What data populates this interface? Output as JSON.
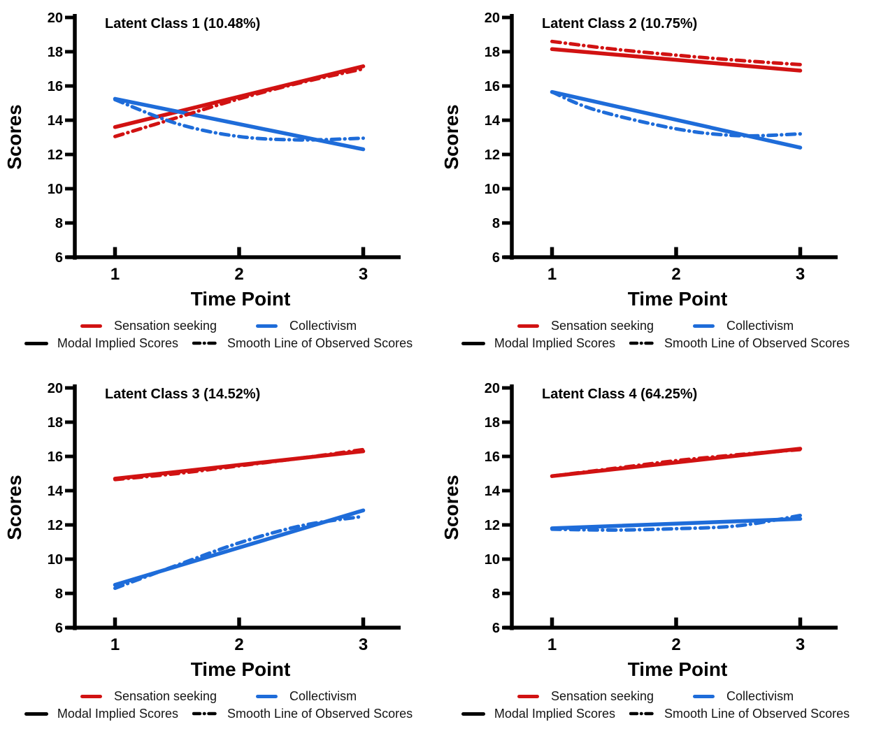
{
  "figure": {
    "background": "#ffffff"
  },
  "colors": {
    "sensation_seeking": "#d11212",
    "collectivism": "#1e6cd9",
    "axis": "#000000",
    "black_key": "#000000"
  },
  "legend": {
    "series": [
      {
        "label": "Sensation seeking",
        "color": "sensation_seeking"
      },
      {
        "label": "Collectivism",
        "color": "collectivism"
      }
    ],
    "styles": [
      {
        "label": "Modal Implied Scores",
        "style": "solid"
      },
      {
        "label": "Smooth Line of Observed Scores",
        "style": "dashdot"
      }
    ]
  },
  "chart_data": {
    "type": "line",
    "xlabel": "Time Point",
    "ylabel": "Scores",
    "xticks": [
      1,
      2,
      3
    ],
    "yticks": [
      6,
      8,
      10,
      12,
      14,
      16,
      18,
      20
    ],
    "xlim": [
      1,
      3
    ],
    "ylim": [
      6,
      20
    ],
    "grid": false,
    "legend_position": "bottom",
    "series_meta": [
      {
        "name": "Sensation seeking — Modal Implied Scores",
        "color": "sensation_seeking",
        "style": "solid"
      },
      {
        "name": "Collectivism — Modal Implied Scores",
        "color": "collectivism",
        "style": "solid"
      },
      {
        "name": "Sensation seeking — Smooth Line of Observed Scores",
        "color": "sensation_seeking",
        "style": "dashdot"
      },
      {
        "name": "Collectivism — Smooth Line of Observed Scores",
        "color": "collectivism",
        "style": "dashdot"
      }
    ],
    "panels": [
      {
        "title": "Latent Class 1 (10.48%)",
        "series": [
          {
            "points": [
              [
                1,
                13.6
              ],
              [
                3,
                17.15
              ]
            ]
          },
          {
            "points": [
              [
                1,
                15.25
              ],
              [
                3,
                12.3
              ]
            ]
          },
          {
            "points": [
              [
                1,
                13.05
              ],
              [
                1.5,
                14.15
              ],
              [
                2,
                15.25
              ],
              [
                2.5,
                16.2
              ],
              [
                3,
                17.0
              ]
            ]
          },
          {
            "points": [
              [
                1,
                15.2
              ],
              [
                1.5,
                13.8
              ],
              [
                2,
                13.05
              ],
              [
                2.5,
                12.85
              ],
              [
                3,
                12.95
              ]
            ]
          }
        ]
      },
      {
        "title": "Latent Class 2 (10.75%)",
        "series": [
          {
            "points": [
              [
                1,
                18.15
              ],
              [
                3,
                16.9
              ]
            ]
          },
          {
            "points": [
              [
                1,
                15.65
              ],
              [
                3,
                12.4
              ]
            ]
          },
          {
            "points": [
              [
                1,
                18.6
              ],
              [
                1.5,
                18.15
              ],
              [
                2,
                17.8
              ],
              [
                2.5,
                17.5
              ],
              [
                3,
                17.25
              ]
            ]
          },
          {
            "points": [
              [
                1,
                15.65
              ],
              [
                1.35,
                14.6
              ],
              [
                2,
                13.5
              ],
              [
                2.5,
                13.1
              ],
              [
                3,
                13.2
              ]
            ]
          }
        ]
      },
      {
        "title": "Latent Class 3 (14.52%)",
        "series": [
          {
            "points": [
              [
                1,
                14.7
              ],
              [
                3,
                16.3
              ]
            ]
          },
          {
            "points": [
              [
                1,
                8.5
              ],
              [
                3,
                12.85
              ]
            ]
          },
          {
            "points": [
              [
                1,
                14.65
              ],
              [
                1.5,
                15.0
              ],
              [
                2,
                15.45
              ],
              [
                2.5,
                15.9
              ],
              [
                3,
                16.4
              ]
            ]
          },
          {
            "points": [
              [
                1,
                8.3
              ],
              [
                1.5,
                9.65
              ],
              [
                2,
                10.95
              ],
              [
                2.5,
                11.95
              ],
              [
                3,
                12.5
              ]
            ]
          }
        ]
      },
      {
        "title": "Latent Class 4 (64.25%)",
        "series": [
          {
            "points": [
              [
                1,
                14.85
              ],
              [
                3,
                16.45
              ]
            ]
          },
          {
            "points": [
              [
                1,
                11.8
              ],
              [
                3,
                12.35
              ]
            ]
          },
          {
            "points": [
              [
                1,
                14.85
              ],
              [
                1.5,
                15.3
              ],
              [
                2,
                15.75
              ],
              [
                2.5,
                16.1
              ],
              [
                3,
                16.4
              ]
            ]
          },
          {
            "points": [
              [
                1,
                11.75
              ],
              [
                1.5,
                11.7
              ],
              [
                2,
                11.78
              ],
              [
                2.5,
                11.95
              ],
              [
                3,
                12.55
              ]
            ]
          }
        ]
      }
    ]
  }
}
